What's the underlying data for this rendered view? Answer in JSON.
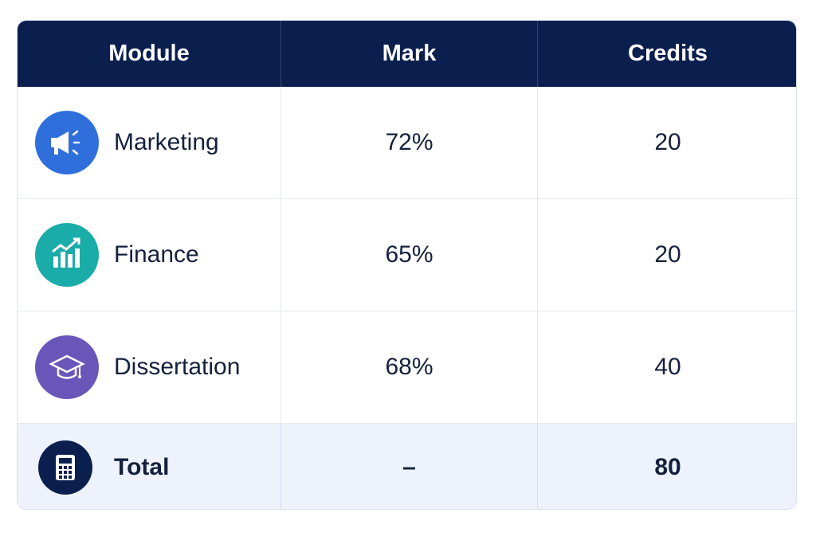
{
  "table": {
    "header": [
      "Module",
      "Mark",
      "Credits"
    ],
    "rows": [
      [
        "Marketing",
        "72%",
        "20"
      ],
      [
        "Finance",
        "65%",
        "20"
      ],
      [
        "Dissertation",
        "68%",
        "40"
      ]
    ],
    "total": [
      "Total",
      "–",
      "80"
    ]
  }
}
